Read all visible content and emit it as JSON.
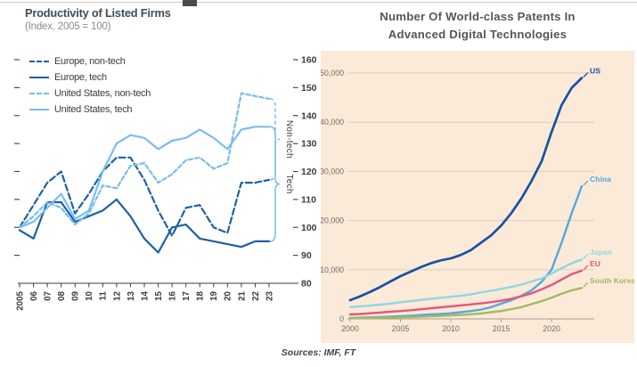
{
  "footer": {
    "sources": "Sources: IMF, FT"
  },
  "colors": {
    "europe_blue": "#1d60a8",
    "us_light_blue": "#79bde9",
    "left_axis_text": "#3d3d3d",
    "panel_background": "#fcead9",
    "gridline": "#d9cec1",
    "right_axis_line": "#a59c8f",
    "right_axis_text": "#6b6b6b",
    "right_title_gray": "#575757"
  },
  "chart_data": [
    {
      "id": "productivity-of-listed-firms",
      "type": "line",
      "title": "Productivity of Listed Firms",
      "subtitle": "(Index, 2005 = 100)",
      "x": [
        2005,
        2006,
        2007,
        2008,
        2009,
        2010,
        2011,
        2012,
        2013,
        2014,
        2015,
        2016,
        2017,
        2018,
        2019,
        2020,
        2021,
        2022,
        2023
      ],
      "x_tick_labels": [
        "2005",
        "06",
        "07",
        "08",
        "09",
        "10",
        "11",
        "12",
        "13",
        "14",
        "15",
        "16",
        "17",
        "18",
        "19",
        "20",
        "21",
        "22",
        "23"
      ],
      "ylim": [
        80,
        160
      ],
      "y_ticks": [
        80,
        90,
        100,
        110,
        120,
        130,
        140,
        150,
        160
      ],
      "y_axis_side": "right",
      "grid": false,
      "legend_position": "top-left",
      "series": [
        {
          "name": "Europe, non-tech",
          "color": "#1d60a8",
          "style": "dashed",
          "values": [
            100,
            108,
            116,
            120,
            105,
            112,
            120,
            125,
            125,
            117,
            106,
            97,
            107,
            108,
            100,
            98,
            116,
            116,
            117
          ]
        },
        {
          "name": "Europe, tech",
          "color": "#1d60a8",
          "style": "solid",
          "values": [
            99,
            96,
            109,
            109,
            102,
            104,
            106,
            110,
            104,
            96,
            91,
            100,
            101,
            96,
            95,
            94,
            93,
            95,
            95
          ]
        },
        {
          "name": "United States, non-tech",
          "color": "#79bde9",
          "style": "dashed",
          "values": [
            100,
            104,
            109,
            107,
            101,
            105,
            115,
            114,
            122,
            123,
            116,
            119,
            124,
            125,
            121,
            123,
            148,
            147,
            146
          ]
        },
        {
          "name": "United States, tech",
          "color": "#79bde9",
          "style": "solid",
          "values": [
            100,
            102,
            107,
            112,
            103,
            106,
            120,
            130,
            133,
            132,
            128,
            131,
            132,
            135,
            132,
            128,
            135,
            136,
            136
          ]
        }
      ],
      "group_brackets": [
        {
          "label": "Non-tech",
          "style": "dashed",
          "series": [
            "United States, non-tech",
            "Europe, non-tech"
          ]
        },
        {
          "label": "Tech",
          "style": "solid",
          "series": [
            "United States, tech",
            "Europe, tech"
          ]
        }
      ]
    },
    {
      "id": "world-class-patents",
      "type": "line",
      "title": "Number Of World-class Patents In Advanced Digital Technologies",
      "title_line1": "Number Of World-class Patents In",
      "title_line2": "Advanced Digital Technologies",
      "background_color": "#fcead9",
      "x": [
        2000,
        2001,
        2002,
        2003,
        2004,
        2005,
        2006,
        2007,
        2008,
        2009,
        2010,
        2011,
        2012,
        2013,
        2014,
        2015,
        2016,
        2017,
        2018,
        2019,
        2020,
        2021,
        2022,
        2023
      ],
      "x_ticks": [
        2000,
        2005,
        2010,
        2015,
        2020
      ],
      "ylim": [
        0,
        50000
      ],
      "y_ticks": [
        0,
        10000,
        20000,
        30000,
        40000,
        50000
      ],
      "y_tick_labels": [
        "0",
        "10,000",
        "20,000",
        "30,000",
        "40,000",
        "50,000"
      ],
      "grid": true,
      "series": [
        {
          "name": "US",
          "color": "#1952a2",
          "values": [
            3800,
            4600,
            5500,
            6500,
            7600,
            8700,
            9600,
            10500,
            11300,
            11900,
            12300,
            13000,
            14000,
            15500,
            17000,
            19000,
            21500,
            24500,
            28000,
            32000,
            38000,
            43500,
            47000,
            49000
          ]
        },
        {
          "name": "China",
          "color": "#55a8dc",
          "values": [
            200,
            250,
            300,
            380,
            450,
            550,
            650,
            780,
            900,
            1000,
            1150,
            1350,
            1600,
            1900,
            2400,
            3100,
            3800,
            4700,
            5800,
            7500,
            10000,
            15500,
            21500,
            27000
          ]
        },
        {
          "name": "Japan",
          "color": "#90d7e4",
          "values": [
            2400,
            2550,
            2700,
            2900,
            3100,
            3400,
            3600,
            3850,
            4100,
            4300,
            4500,
            4700,
            5000,
            5400,
            5700,
            6100,
            6500,
            7000,
            7600,
            8200,
            9200,
            10300,
            11300,
            12100
          ]
        },
        {
          "name": "EU",
          "color": "#e9537b",
          "values": [
            900,
            1000,
            1150,
            1300,
            1450,
            1600,
            1750,
            1950,
            2150,
            2350,
            2550,
            2750,
            2950,
            3150,
            3400,
            3700,
            4100,
            4600,
            5200,
            6000,
            6900,
            8000,
            9100,
            9800
          ]
        },
        {
          "name": "South Korea",
          "color": "#a3ba62",
          "values": [
            150,
            170,
            200,
            230,
            270,
            320,
            380,
            450,
            520,
            600,
            700,
            800,
            950,
            1100,
            1350,
            1600,
            2000,
            2400,
            3000,
            3600,
            4300,
            5100,
            5800,
            6300
          ]
        }
      ]
    }
  ]
}
